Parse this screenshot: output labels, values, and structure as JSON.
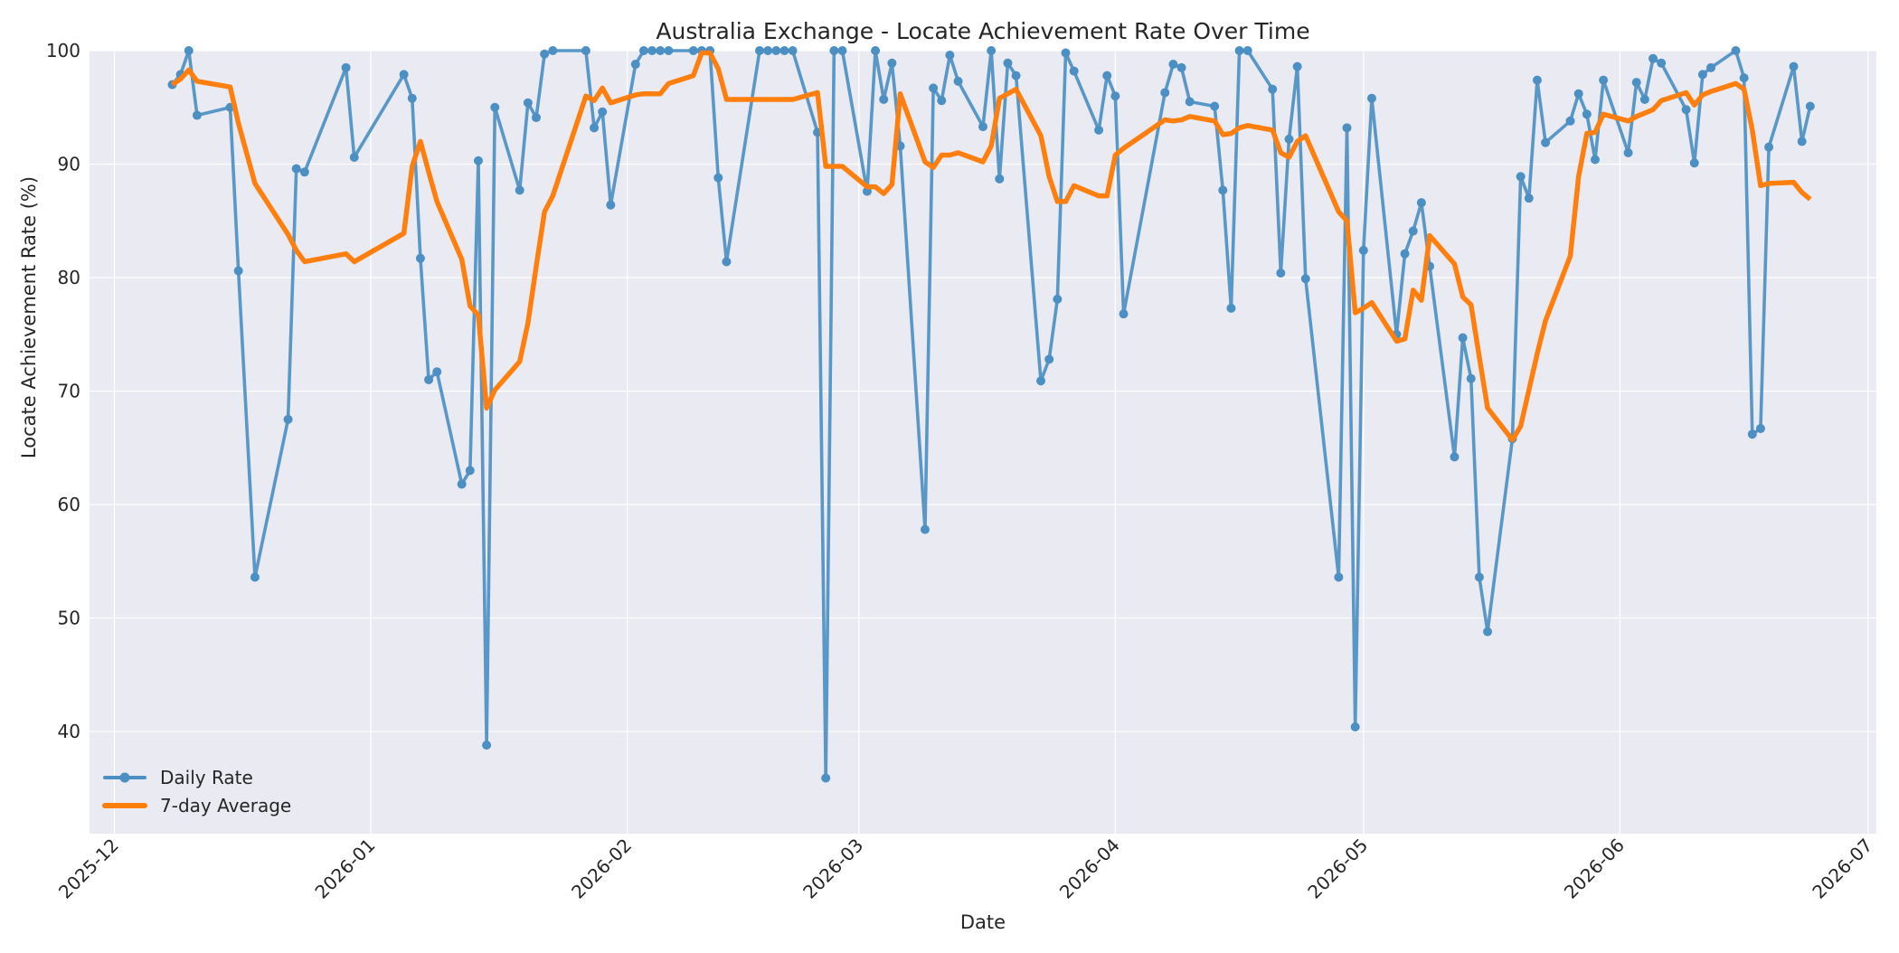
{
  "chart_data": {
    "type": "line",
    "title": "Australia Exchange - Locate Achievement Rate Over Time",
    "xlabel": "Date",
    "ylabel": "Locate Achievement Rate (%)",
    "xlim": [
      "2025-11-28",
      "2026-07-02"
    ],
    "ylim": [
      31,
      100
    ],
    "yticks": [
      40,
      50,
      60,
      70,
      80,
      90,
      100
    ],
    "xticks": [
      {
        "date": "2025-12-01",
        "label": "2025-12"
      },
      {
        "date": "2026-01-01",
        "label": "2026-01"
      },
      {
        "date": "2026-02-01",
        "label": "2026-02"
      },
      {
        "date": "2026-03-01",
        "label": "2026-03"
      },
      {
        "date": "2026-04-01",
        "label": "2026-04"
      },
      {
        "date": "2026-05-01",
        "label": "2026-05"
      },
      {
        "date": "2026-06-01",
        "label": "2026-06"
      },
      {
        "date": "2026-07-01",
        "label": "2026-07"
      }
    ],
    "grid": true,
    "legend_position": "lower-left",
    "colors": {
      "daily": "#4c8fc3",
      "average": "#ff7f0e",
      "plot_bg": "#eaeaf2",
      "grid": "#ffffff"
    },
    "series": [
      {
        "name": "Daily Rate",
        "marker": "circle",
        "points": [
          [
            "2025-12-08",
            97.0
          ],
          [
            "2025-12-09",
            97.9
          ],
          [
            "2025-12-10",
            100.0
          ],
          [
            "2025-12-11",
            94.3
          ],
          [
            "2025-12-15",
            95.0
          ],
          [
            "2025-12-16",
            80.6
          ],
          [
            "2025-12-18",
            53.6
          ],
          [
            "2025-12-22",
            67.5
          ],
          [
            "2025-12-23",
            89.6
          ],
          [
            "2025-12-24",
            89.3
          ],
          [
            "2025-12-29",
            98.5
          ],
          [
            "2025-12-30",
            90.6
          ],
          [
            "2026-01-05",
            97.9
          ],
          [
            "2026-01-06",
            95.8
          ],
          [
            "2026-01-07",
            81.7
          ],
          [
            "2026-01-08",
            71.0
          ],
          [
            "2026-01-09",
            71.7
          ],
          [
            "2026-01-12",
            61.8
          ],
          [
            "2026-01-13",
            63.0
          ],
          [
            "2026-01-14",
            90.3
          ],
          [
            "2026-01-15",
            38.8
          ],
          [
            "2026-01-16",
            95.0
          ],
          [
            "2026-01-19",
            87.7
          ],
          [
            "2026-01-20",
            95.4
          ],
          [
            "2026-01-21",
            94.1
          ],
          [
            "2026-01-22",
            99.7
          ],
          [
            "2026-01-23",
            100.0
          ],
          [
            "2026-01-27",
            100.0
          ],
          [
            "2026-01-28",
            93.2
          ],
          [
            "2026-01-29",
            94.6
          ],
          [
            "2026-01-30",
            86.4
          ],
          [
            "2026-02-02",
            98.8
          ],
          [
            "2026-02-03",
            100.0
          ],
          [
            "2026-02-04",
            100.0
          ],
          [
            "2026-02-05",
            100.0
          ],
          [
            "2026-02-06",
            100.0
          ],
          [
            "2026-02-09",
            100.0
          ],
          [
            "2026-02-10",
            100.0
          ],
          [
            "2026-02-11",
            100.0
          ],
          [
            "2026-02-12",
            88.8
          ],
          [
            "2026-02-13",
            81.4
          ],
          [
            "2026-02-17",
            100.0
          ],
          [
            "2026-02-18",
            100.0
          ],
          [
            "2026-02-19",
            100.0
          ],
          [
            "2026-02-20",
            100.0
          ],
          [
            "2026-02-21",
            100.0
          ],
          [
            "2026-02-24",
            92.8
          ],
          [
            "2026-02-25",
            35.9
          ],
          [
            "2026-02-26",
            100.0
          ],
          [
            "2026-02-27",
            100.0
          ],
          [
            "2026-03-02",
            87.6
          ],
          [
            "2026-03-03",
            100.0
          ],
          [
            "2026-03-04",
            95.7
          ],
          [
            "2026-03-05",
            98.9
          ],
          [
            "2026-03-06",
            91.6
          ],
          [
            "2026-03-09",
            57.8
          ],
          [
            "2026-03-10",
            96.7
          ],
          [
            "2026-03-11",
            95.6
          ],
          [
            "2026-03-12",
            99.6
          ],
          [
            "2026-03-13",
            97.3
          ],
          [
            "2026-03-16",
            93.3
          ],
          [
            "2026-03-17",
            100.0
          ],
          [
            "2026-03-18",
            88.7
          ],
          [
            "2026-03-19",
            98.9
          ],
          [
            "2026-03-20",
            97.8
          ],
          [
            "2026-03-23",
            70.9
          ],
          [
            "2026-03-24",
            72.8
          ],
          [
            "2026-03-25",
            78.1
          ],
          [
            "2026-03-26",
            99.8
          ],
          [
            "2026-03-27",
            98.2
          ],
          [
            "2026-03-30",
            93.0
          ],
          [
            "2026-03-31",
            97.8
          ],
          [
            "2026-04-01",
            96.0
          ],
          [
            "2026-04-02",
            76.8
          ],
          [
            "2026-04-07",
            96.3
          ],
          [
            "2026-04-08",
            98.8
          ],
          [
            "2026-04-09",
            98.5
          ],
          [
            "2026-04-10",
            95.5
          ],
          [
            "2026-04-13",
            95.1
          ],
          [
            "2026-04-14",
            87.7
          ],
          [
            "2026-04-15",
            77.3
          ],
          [
            "2026-04-16",
            100.0
          ],
          [
            "2026-04-17",
            100.0
          ],
          [
            "2026-04-20",
            96.6
          ],
          [
            "2026-04-21",
            80.4
          ],
          [
            "2026-04-22",
            92.2
          ],
          [
            "2026-04-23",
            98.6
          ],
          [
            "2026-04-24",
            79.9
          ],
          [
            "2026-04-28",
            53.6
          ],
          [
            "2026-04-29",
            93.2
          ],
          [
            "2026-04-30",
            40.4
          ],
          [
            "2026-05-01",
            82.4
          ],
          [
            "2026-05-02",
            95.8
          ],
          [
            "2026-05-05",
            75.0
          ],
          [
            "2026-05-06",
            82.1
          ],
          [
            "2026-05-07",
            84.1
          ],
          [
            "2026-05-08",
            86.6
          ],
          [
            "2026-05-09",
            81.0
          ],
          [
            "2026-05-12",
            64.2
          ],
          [
            "2026-05-13",
            74.7
          ],
          [
            "2026-05-14",
            71.1
          ],
          [
            "2026-05-15",
            53.6
          ],
          [
            "2026-05-16",
            48.8
          ],
          [
            "2026-05-19",
            65.8
          ],
          [
            "2026-05-20",
            88.9
          ],
          [
            "2026-05-21",
            87.0
          ],
          [
            "2026-05-22",
            97.4
          ],
          [
            "2026-05-23",
            91.9
          ],
          [
            "2026-05-26",
            93.8
          ],
          [
            "2026-05-27",
            96.2
          ],
          [
            "2026-05-28",
            94.4
          ],
          [
            "2026-05-29",
            90.4
          ],
          [
            "2026-05-30",
            97.4
          ],
          [
            "2026-06-02",
            91.0
          ],
          [
            "2026-06-03",
            97.2
          ],
          [
            "2026-06-04",
            95.7
          ],
          [
            "2026-06-05",
            99.3
          ],
          [
            "2026-06-06",
            98.9
          ],
          [
            "2026-06-09",
            94.8
          ],
          [
            "2026-06-10",
            90.1
          ],
          [
            "2026-06-11",
            97.9
          ],
          [
            "2026-06-12",
            98.5
          ],
          [
            "2026-06-15",
            100.0
          ],
          [
            "2026-06-16",
            97.6
          ],
          [
            "2026-06-17",
            66.2
          ],
          [
            "2026-06-18",
            66.7
          ],
          [
            "2026-06-19",
            91.5
          ],
          [
            "2026-06-22",
            98.6
          ],
          [
            "2026-06-23",
            92.0
          ],
          [
            "2026-06-24",
            95.1
          ]
        ]
      },
      {
        "name": "7-day Average",
        "marker": "none",
        "points": [
          [
            "2025-12-08",
            97.0
          ],
          [
            "2025-12-09",
            97.5
          ],
          [
            "2025-12-10",
            98.3
          ],
          [
            "2025-12-11",
            97.3
          ],
          [
            "2025-12-15",
            96.8
          ],
          [
            "2025-12-16",
            93.6
          ],
          [
            "2025-12-18",
            88.3
          ],
          [
            "2025-12-22",
            83.8
          ],
          [
            "2025-12-23",
            82.4
          ],
          [
            "2025-12-24",
            81.4
          ],
          [
            "2025-12-29",
            82.1
          ],
          [
            "2025-12-30",
            81.4
          ],
          [
            "2026-01-05",
            83.9
          ],
          [
            "2026-01-06",
            89.8
          ],
          [
            "2026-01-07",
            92.0
          ],
          [
            "2026-01-08",
            89.3
          ],
          [
            "2026-01-09",
            86.7
          ],
          [
            "2026-01-12",
            81.6
          ],
          [
            "2026-01-13",
            77.5
          ],
          [
            "2026-01-14",
            76.7
          ],
          [
            "2026-01-15",
            68.5
          ],
          [
            "2026-01-16",
            70.1
          ],
          [
            "2026-01-19",
            72.6
          ],
          [
            "2026-01-20",
            76.0
          ],
          [
            "2026-01-21",
            81.0
          ],
          [
            "2026-01-22",
            85.8
          ],
          [
            "2026-01-23",
            87.2
          ],
          [
            "2026-01-27",
            96.0
          ],
          [
            "2026-01-28",
            95.6
          ],
          [
            "2026-01-29",
            96.7
          ],
          [
            "2026-01-30",
            95.4
          ],
          [
            "2026-02-02",
            96.1
          ],
          [
            "2026-02-03",
            96.2
          ],
          [
            "2026-02-04",
            96.2
          ],
          [
            "2026-02-05",
            96.2
          ],
          [
            "2026-02-06",
            97.1
          ],
          [
            "2026-02-09",
            97.8
          ],
          [
            "2026-02-10",
            99.8
          ],
          [
            "2026-02-11",
            99.8
          ],
          [
            "2026-02-12",
            98.4
          ],
          [
            "2026-02-13",
            95.7
          ],
          [
            "2026-02-17",
            95.7
          ],
          [
            "2026-02-18",
            95.7
          ],
          [
            "2026-02-19",
            95.7
          ],
          [
            "2026-02-20",
            95.7
          ],
          [
            "2026-02-21",
            95.7
          ],
          [
            "2026-02-24",
            96.3
          ],
          [
            "2026-02-25",
            89.8
          ],
          [
            "2026-02-26",
            89.8
          ],
          [
            "2026-02-27",
            89.8
          ],
          [
            "2026-03-02",
            88.0
          ],
          [
            "2026-03-03",
            88.0
          ],
          [
            "2026-03-04",
            87.4
          ],
          [
            "2026-03-05",
            88.2
          ],
          [
            "2026-03-06",
            96.2
          ],
          [
            "2026-03-09",
            90.2
          ],
          [
            "2026-03-10",
            89.7
          ],
          [
            "2026-03-11",
            90.8
          ],
          [
            "2026-03-12",
            90.8
          ],
          [
            "2026-03-13",
            91.0
          ],
          [
            "2026-03-16",
            90.2
          ],
          [
            "2026-03-17",
            91.6
          ],
          [
            "2026-03-18",
            95.8
          ],
          [
            "2026-03-19",
            96.2
          ],
          [
            "2026-03-20",
            96.6
          ],
          [
            "2026-03-23",
            92.5
          ],
          [
            "2026-03-24",
            88.9
          ],
          [
            "2026-03-25",
            86.7
          ],
          [
            "2026-03-26",
            86.7
          ],
          [
            "2026-03-27",
            88.1
          ],
          [
            "2026-03-30",
            87.2
          ],
          [
            "2026-03-31",
            87.2
          ],
          [
            "2026-04-01",
            90.8
          ],
          [
            "2026-04-02",
            91.4
          ],
          [
            "2026-04-07",
            93.9
          ],
          [
            "2026-04-08",
            93.8
          ],
          [
            "2026-04-09",
            93.9
          ],
          [
            "2026-04-10",
            94.2
          ],
          [
            "2026-04-13",
            93.8
          ],
          [
            "2026-04-14",
            92.6
          ],
          [
            "2026-04-15",
            92.7
          ],
          [
            "2026-04-16",
            93.2
          ],
          [
            "2026-04-17",
            93.4
          ],
          [
            "2026-04-20",
            93.0
          ],
          [
            "2026-04-21",
            91.0
          ],
          [
            "2026-04-22",
            90.6
          ],
          [
            "2026-04-23",
            92.0
          ],
          [
            "2026-04-24",
            92.5
          ],
          [
            "2026-04-28",
            85.8
          ],
          [
            "2026-04-29",
            85.0
          ],
          [
            "2026-04-30",
            76.9
          ],
          [
            "2026-05-01",
            77.3
          ],
          [
            "2026-05-02",
            77.8
          ],
          [
            "2026-05-05",
            74.4
          ],
          [
            "2026-05-06",
            74.6
          ],
          [
            "2026-05-07",
            78.9
          ],
          [
            "2026-05-08",
            78.0
          ],
          [
            "2026-05-09",
            83.7
          ],
          [
            "2026-05-12",
            81.2
          ],
          [
            "2026-05-13",
            78.3
          ],
          [
            "2026-05-14",
            77.6
          ],
          [
            "2026-05-15",
            73.0
          ],
          [
            "2026-05-16",
            68.5
          ],
          [
            "2026-05-19",
            65.7
          ],
          [
            "2026-05-20",
            66.9
          ],
          [
            "2026-05-21",
            70.1
          ],
          [
            "2026-05-22",
            73.3
          ],
          [
            "2026-05-23",
            76.2
          ],
          [
            "2026-05-26",
            81.9
          ],
          [
            "2026-05-27",
            88.9
          ],
          [
            "2026-05-28",
            92.7
          ],
          [
            "2026-05-29",
            92.8
          ],
          [
            "2026-05-30",
            94.4
          ],
          [
            "2026-06-02",
            93.8
          ],
          [
            "2026-06-03",
            94.2
          ],
          [
            "2026-06-04",
            94.5
          ],
          [
            "2026-06-05",
            94.8
          ],
          [
            "2026-06-06",
            95.6
          ],
          [
            "2026-06-09",
            96.3
          ],
          [
            "2026-06-10",
            95.2
          ],
          [
            "2026-06-11",
            96.1
          ],
          [
            "2026-06-12",
            96.4
          ],
          [
            "2026-06-15",
            97.1
          ],
          [
            "2026-06-16",
            96.6
          ],
          [
            "2026-06-17",
            93.0
          ],
          [
            "2026-06-18",
            88.1
          ],
          [
            "2026-06-19",
            88.3
          ],
          [
            "2026-06-22",
            88.4
          ],
          [
            "2026-06-23",
            87.5
          ],
          [
            "2026-06-24",
            86.9
          ]
        ]
      }
    ]
  }
}
